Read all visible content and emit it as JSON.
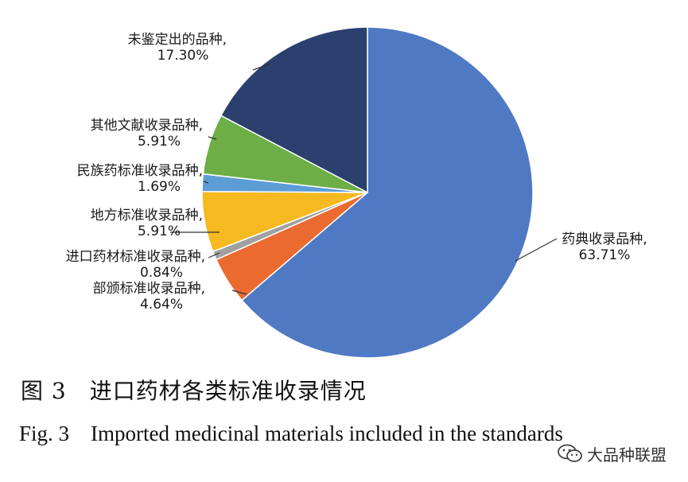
{
  "chart_data": {
    "type": "pie",
    "slices": [
      {
        "label": "药典收录品种,",
        "value": 63.71,
        "display": "63.71%",
        "color": "#4f79c3"
      },
      {
        "label": "部颁标准收录品种,",
        "value": 4.64,
        "display": "4.64%",
        "color": "#ea6a30"
      },
      {
        "label": "进口药材标准收录品种,",
        "value": 0.84,
        "display": "0.84%",
        "color": "#a0a0a0"
      },
      {
        "label": "地方标准收录品种,",
        "value": 5.91,
        "display": "5.91%",
        "color": "#f6b920"
      },
      {
        "label": "民族药标准收录品种,",
        "value": 1.69,
        "display": "1.69%",
        "color": "#5d9dd5"
      },
      {
        "label": "其他文献收录品种,",
        "value": 5.91,
        "display": "5.91%",
        "color": "#6dae47"
      },
      {
        "label": "未鉴定出的品种,",
        "value": 17.3,
        "display": "17.30%",
        "color": "#2b406e"
      }
    ]
  },
  "caption": {
    "cn": "图 3　进口药材各类标准收录情况",
    "en": "Fig. 3 Imported medicinal materials included in the standards"
  },
  "watermark": {
    "text": "大品种联盟",
    "icon": "wechat-icon"
  }
}
